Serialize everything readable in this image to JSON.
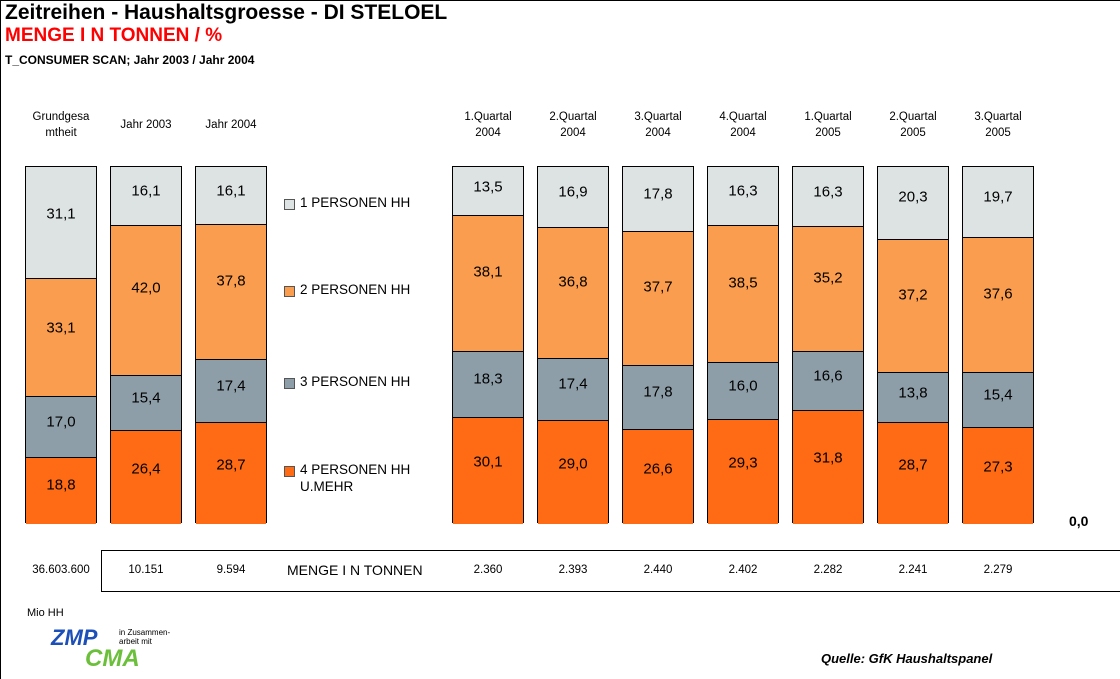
{
  "chart_data": {
    "type": "stacked_bar",
    "title": "Zeitreihen - Haushaltsgroesse - DI STELOEL",
    "subtitle": "MENGE I N TONNEN / %",
    "source_line": "T_CONSUMER SCAN; Jahr 2003 / Jahr 2004",
    "categories": [
      "Grundgesa mtheit",
      "Jahr 2003",
      "Jahr 2004",
      "1.Quartal 2004",
      "2.Quartal 2004",
      "3.Quartal 2004",
      "4.Quartal 2004",
      "1.Quartal 2005",
      "2.Quartal 2005",
      "3.Quartal 2005"
    ],
    "series": [
      {
        "name": "1 PERSONEN HH",
        "color": "#dde3e3",
        "values": [
          31.1,
          16.1,
          16.1,
          13.5,
          16.9,
          17.8,
          16.3,
          16.3,
          20.3,
          19.7
        ],
        "value_labels": [
          "31,1",
          "16,1",
          "16,1",
          "13,5",
          "16,9",
          "17,8",
          "16,3",
          "16,3",
          "20,3",
          "19,7"
        ]
      },
      {
        "name": "2 PERSONEN HH",
        "color": "#fb9d4e",
        "values": [
          33.1,
          42.0,
          37.8,
          38.1,
          36.8,
          37.7,
          38.5,
          35.2,
          37.2,
          37.6
        ],
        "value_labels": [
          "33,1",
          "42,0",
          "37,8",
          "38,1",
          "36,8",
          "37,7",
          "38,5",
          "35,2",
          "37,2",
          "37,6"
        ]
      },
      {
        "name": "3 PERSONEN HH",
        "color": "#8d9ea8",
        "values": [
          17.0,
          15.4,
          17.4,
          18.3,
          17.4,
          17.8,
          16.0,
          16.6,
          13.8,
          15.4
        ],
        "value_labels": [
          "17,0",
          "15,4",
          "17,4",
          "18,3",
          "17,4",
          "17,8",
          "16,0",
          "16,6",
          "13,8",
          "15,4"
        ]
      },
      {
        "name": "4 PERSONEN HH U.MEHR",
        "color": "#ff6a14",
        "values": [
          18.8,
          26.4,
          28.7,
          30.1,
          29.0,
          26.6,
          29.3,
          31.8,
          28.7,
          27.3
        ],
        "value_labels": [
          "18,8",
          "26,4",
          "28,7",
          "30,1",
          "29,0",
          "26,6",
          "29,3",
          "31,8",
          "28,7",
          "27,3"
        ]
      }
    ],
    "ylim": [
      0,
      100
    ],
    "yticks": [
      {
        "value": 0,
        "label": "0,0"
      }
    ],
    "totals": {
      "label": "MENGE I N TONNEN",
      "unit_label": "Mio HH",
      "values": [
        36603600,
        10151,
        9594,
        2360,
        2393,
        2440,
        2402,
        2282,
        2241,
        2279
      ],
      "value_labels": [
        "36.603.600",
        "10.151",
        "9.594",
        "2.360",
        "2.393",
        "2.440",
        "2.402",
        "2.282",
        "2.241",
        "2.279"
      ]
    },
    "logo": {
      "name": "ZMP",
      "text": "in Zusammen- arbeit mit",
      "partner": "CMA"
    },
    "source": "Quelle: GfK Haushaltspanel"
  }
}
